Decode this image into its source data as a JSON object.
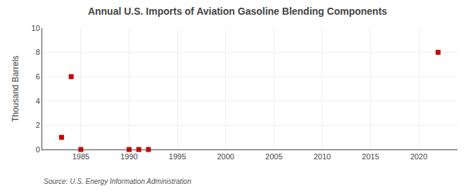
{
  "chart_data": {
    "type": "scatter",
    "title": "Annual U.S. Imports of Aviation Gasoline Blending Components",
    "ylabel": "Thousand Barrels",
    "source": "Source: U.S. Energy Information Administration",
    "x": [
      1983,
      1984,
      1985,
      1990,
      1991,
      1992,
      2022
    ],
    "values": [
      1,
      6,
      0,
      0,
      0,
      0,
      8
    ],
    "color": "#cc0000",
    "marker": "square",
    "xlim": [
      1981,
      2024
    ],
    "ylim": [
      0,
      10
    ],
    "xticks": [
      1985,
      1990,
      1995,
      2000,
      2005,
      2010,
      2015,
      2020
    ],
    "yticks": [
      0,
      2,
      4,
      6,
      8,
      10
    ],
    "grid": true
  }
}
